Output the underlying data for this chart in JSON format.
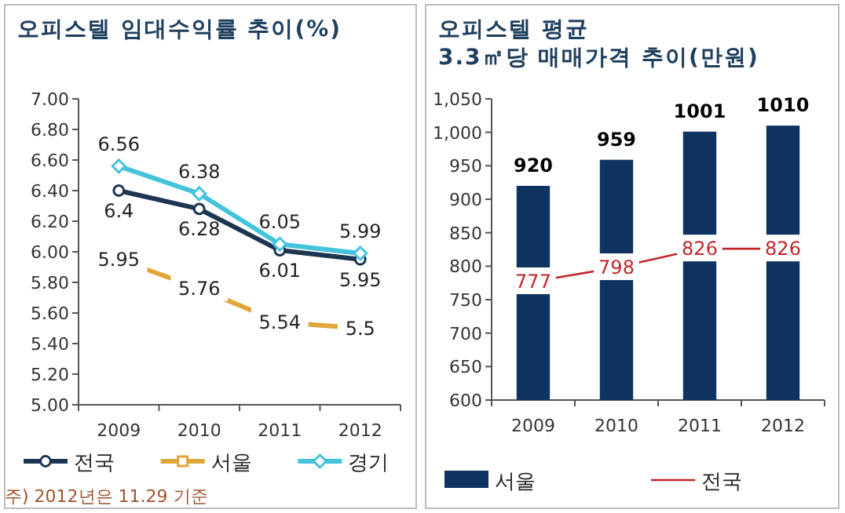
{
  "chart_data": [
    {
      "type": "line",
      "title": "오피스텔 임대수익률 추이(%)",
      "categories": [
        "2009",
        "2010",
        "2011",
        "2012"
      ],
      "series": [
        {
          "name": "전국",
          "color": "#1c3550",
          "marker": "circle",
          "values": [
            6.4,
            6.28,
            6.01,
            5.95
          ]
        },
        {
          "name": "서울",
          "color": "#e0a63a",
          "marker": "square",
          "values": [
            5.95,
            5.76,
            5.54,
            5.5
          ]
        },
        {
          "name": "경기",
          "color": "#45c3dc",
          "marker": "diamond",
          "values": [
            6.56,
            6.38,
            6.05,
            5.99
          ]
        }
      ],
      "ylim": [
        5,
        7
      ],
      "yticks": [
        {
          "value": 5,
          "label": "5.00"
        },
        {
          "value": 5.2,
          "label": "5.20"
        },
        {
          "value": 5.4,
          "label": "5.40"
        },
        {
          "value": 5.6,
          "label": "5.60"
        },
        {
          "value": 5.8,
          "label": "5.80"
        },
        {
          "value": 6,
          "label": "6.00"
        },
        {
          "value": 6.2,
          "label": "6.20"
        },
        {
          "value": 6.4,
          "label": "6.40"
        },
        {
          "value": 6.6,
          "label": "6.60"
        },
        {
          "value": 6.8,
          "label": "6.80"
        },
        {
          "value": 7,
          "label": "7.00"
        }
      ],
      "data_labels": true,
      "legend": "bottom",
      "grid": false,
      "annotations": [
        "주) 2012년은 11.29 기준"
      ]
    },
    {
      "type": "bar",
      "title": "오피스텔 평균\n3.3㎡당 매매가격 추이(만원)",
      "categories": [
        "2009",
        "2010",
        "2011",
        "2012"
      ],
      "series": [
        {
          "name": "서울",
          "type": "bar",
          "color": "#0f3461",
          "values": [
            920,
            959,
            1001,
            1010
          ]
        },
        {
          "name": "전국",
          "type": "line",
          "color": "#c0282a",
          "marker": "none",
          "values": [
            777,
            798,
            826,
            826
          ]
        }
      ],
      "ylim": [
        600,
        1050
      ],
      "yticks": [
        600,
        650,
        700,
        750,
        800,
        850,
        900,
        950,
        {
          "value": 1000,
          "label": "1,000"
        },
        {
          "value": 1050,
          "label": "1,050"
        }
      ],
      "data_labels": true,
      "legend": "bottom",
      "grid": false
    }
  ]
}
